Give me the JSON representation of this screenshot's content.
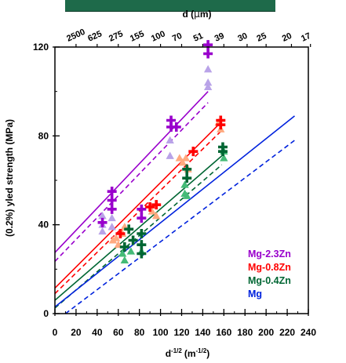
{
  "chart_data": {
    "type": "scatter",
    "ylabel": "(0.2%) yled strength (MPa)",
    "xlabel_main": "d",
    "xlabel_sup": "-1/2",
    "xlabel_unit": "(m",
    "xlabel_unit_sup": "-1/2",
    "xlabel_close": ")",
    "top_label_prefix": "d (",
    "top_label_mu": "μ",
    "top_label_suffix": "m)",
    "xlim": [
      0,
      240
    ],
    "ylim": [
      0,
      120
    ],
    "x_ticks": [
      0,
      20,
      40,
      60,
      80,
      100,
      120,
      140,
      160,
      180,
      200,
      220,
      240
    ],
    "x_tick_labels": [
      "0",
      "20",
      "40",
      "60",
      "80",
      "100",
      "120",
      "140",
      "160",
      "180",
      "200",
      "220",
      "240"
    ],
    "y_ticks": [
      0,
      40,
      80,
      120
    ],
    "y_tick_labels": [
      "0",
      "40",
      "80",
      "120"
    ],
    "top_ticks": [
      {
        "label": "2500",
        "x": 20
      },
      {
        "label": "625",
        "x": 40
      },
      {
        "label": "275",
        "x": 60
      },
      {
        "label": "155",
        "x": 80
      },
      {
        "label": "100",
        "x": 100
      },
      {
        "label": "70",
        "x": 120
      },
      {
        "label": "51",
        "x": 140
      },
      {
        "label": "39",
        "x": 160
      },
      {
        "label": "30",
        "x": 182
      },
      {
        "label": "25",
        "x": 200
      },
      {
        "label": "20",
        "x": 224
      },
      {
        "label": "17",
        "x": 242
      }
    ],
    "legend_position": "bottom-right",
    "series": [
      {
        "name": "Mg-2.3Zn",
        "color": "#9900cc",
        "light_color": "#b9a3e8",
        "fit_solid": [
          [
            0,
            27.5
          ],
          [
            145,
            100
          ]
        ],
        "fit_dashed": [
          [
            0,
            23.5
          ],
          [
            145,
            95
          ]
        ],
        "crosses": [
          [
            45,
            41
          ],
          [
            54,
            55
          ],
          [
            54,
            51
          ],
          [
            54,
            47
          ],
          [
            82,
            47
          ],
          [
            82,
            43
          ],
          [
            110,
            87
          ],
          [
            110,
            84
          ],
          [
            115,
            84
          ],
          [
            145,
            121
          ],
          [
            145,
            117
          ]
        ],
        "triangles": [
          [
            45,
            44
          ],
          [
            45,
            40
          ],
          [
            45,
            37
          ],
          [
            54,
            43
          ],
          [
            54,
            39
          ],
          [
            109,
            78
          ],
          [
            109,
            71
          ],
          [
            145,
            110
          ],
          [
            145,
            104
          ],
          [
            145,
            102
          ]
        ]
      },
      {
        "name": "Mg-0.8Zn",
        "color": "#ff0000",
        "light_color": "#ffaa80",
        "fit_solid": [
          [
            0,
            11.5
          ],
          [
            157,
            86
          ]
        ],
        "fit_dashed": [
          [
            0,
            9
          ],
          [
            157,
            82
          ]
        ],
        "crosses": [
          [
            62,
            36
          ],
          [
            90,
            48
          ],
          [
            96,
            49
          ],
          [
            131,
            73
          ],
          [
            157,
            87
          ],
          [
            157,
            85
          ]
        ],
        "triangles": [
          [
            55,
            33
          ],
          [
            58,
            34
          ],
          [
            60,
            31
          ],
          [
            64,
            36
          ],
          [
            66,
            39
          ],
          [
            92,
            46
          ],
          [
            96,
            44
          ],
          [
            118,
            70
          ],
          [
            121,
            68
          ],
          [
            124,
            70
          ],
          [
            126,
            65
          ],
          [
            155,
            86
          ],
          [
            157,
            83
          ]
        ]
      },
      {
        "name": "Mg-0.4Zn",
        "color": "#006633",
        "light_color": "#44bb77",
        "fit_solid": [
          [
            0,
            6
          ],
          [
            158,
            71
          ]
        ],
        "fit_dashed": [
          [
            0,
            2.5
          ],
          [
            158,
            67
          ]
        ],
        "crosses": [
          [
            66,
            30
          ],
          [
            70,
            38
          ],
          [
            74,
            33
          ],
          [
            82,
            36
          ],
          [
            82,
            31
          ],
          [
            82,
            27
          ],
          [
            125,
            65
          ],
          [
            125,
            61
          ],
          [
            159,
            75
          ],
          [
            159,
            73
          ]
        ],
        "triangles": [
          [
            64,
            27
          ],
          [
            66,
            24
          ],
          [
            72,
            28
          ],
          [
            82,
            28
          ],
          [
            123,
            58
          ],
          [
            123,
            54
          ],
          [
            125,
            53
          ],
          [
            160,
            73
          ],
          [
            160,
            70
          ]
        ]
      },
      {
        "name": "Mg",
        "color": "#0022dd",
        "fit_solid": [
          [
            0,
            3
          ],
          [
            227,
            89
          ]
        ],
        "fit_dashed": [
          [
            10,
            0
          ],
          [
            227,
            78
          ]
        ]
      }
    ]
  }
}
